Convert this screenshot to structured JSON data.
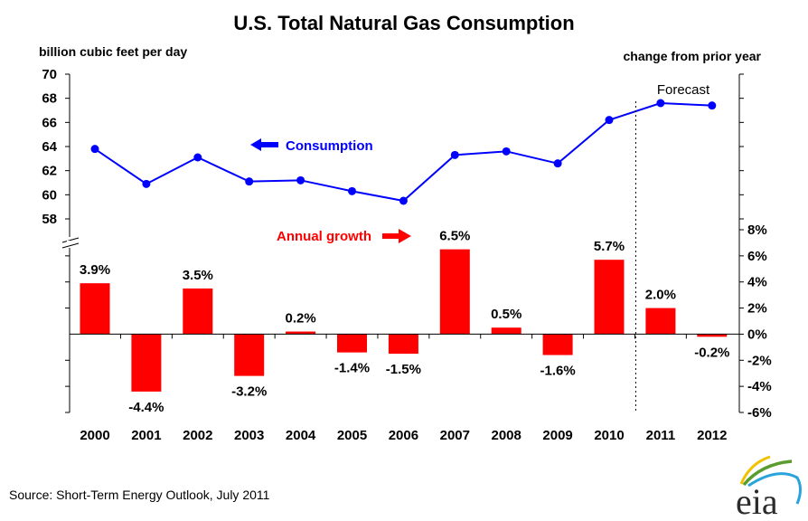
{
  "chart_data": {
    "type": "combo",
    "title": "U.S. Total Natural Gas Consumption",
    "categories": [
      "2000",
      "2001",
      "2002",
      "2003",
      "2004",
      "2005",
      "2006",
      "2007",
      "2008",
      "2009",
      "2010",
      "2011",
      "2012"
    ],
    "series": [
      {
        "name": "Consumption",
        "type": "line",
        "axis": "left",
        "color": "#0000ff",
        "values": [
          63.8,
          60.9,
          63.1,
          61.1,
          61.2,
          60.3,
          59.5,
          63.3,
          63.6,
          62.6,
          66.2,
          67.6,
          67.4
        ]
      },
      {
        "name": "Annual growth",
        "type": "bar",
        "axis": "right",
        "color": "#ff0000",
        "values": [
          3.9,
          -4.4,
          3.5,
          -3.2,
          0.2,
          -1.4,
          -1.5,
          6.5,
          0.5,
          -1.6,
          5.7,
          2.0,
          -0.2
        ],
        "labels": [
          "3.9%",
          "-4.4%",
          "3.5%",
          "-3.2%",
          "0.2%",
          "-1.4%",
          "-1.5%",
          "6.5%",
          "0.5%",
          "-1.6%",
          "5.7%",
          "2.0%",
          "-0.2%"
        ]
      }
    ],
    "left_axis": {
      "label": "billion cubic feet per day",
      "ylim": [
        58,
        70
      ],
      "ticks": [
        "70",
        "68",
        "66",
        "64",
        "62",
        "60",
        "58"
      ],
      "tick_values": [
        70,
        68,
        66,
        64,
        62,
        60,
        58
      ],
      "axis_break": true
    },
    "right_axis": {
      "label": "change from prior year",
      "ylim": [
        -6,
        8
      ],
      "ticks": [
        "8%",
        "6%",
        "4%",
        "2%",
        "0%",
        "-2%",
        "-4%",
        "-6%"
      ],
      "tick_values": [
        8,
        6,
        4,
        2,
        0,
        -2,
        -4,
        -6
      ]
    },
    "annotations": {
      "consumption_legend": "Consumption",
      "growth_legend": "Annual growth",
      "forecast": "Forecast",
      "forecast_start_between": [
        "2010",
        "2011"
      ]
    },
    "grid": false,
    "legend": "inline"
  },
  "footer": {
    "source": "Source: Short-Term Energy Outlook, July 2011",
    "logo_text": "eia"
  }
}
